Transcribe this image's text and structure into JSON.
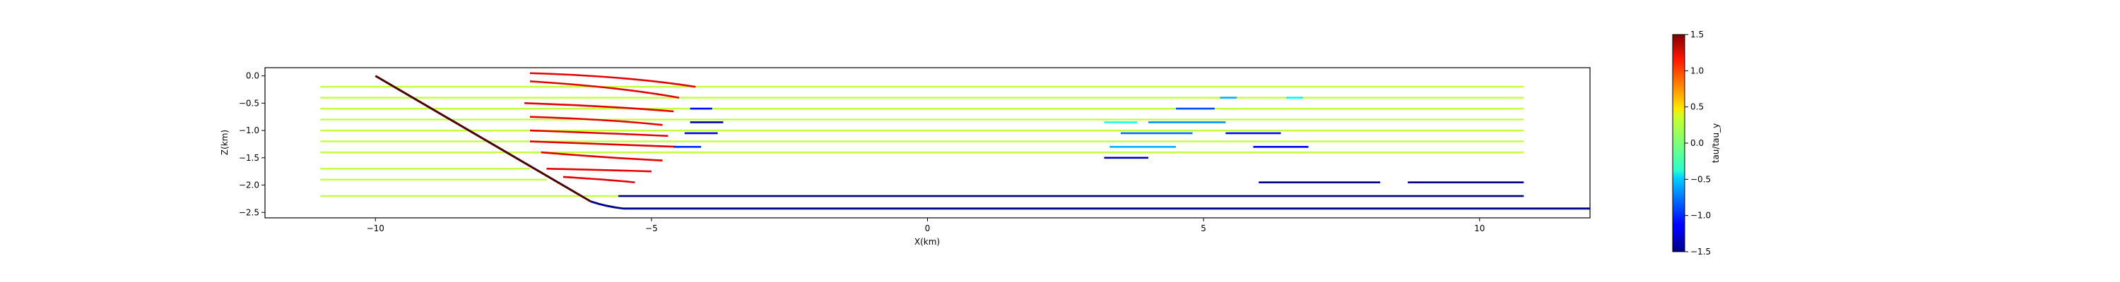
{
  "chart_data": {
    "type": "line",
    "xlabel": "X(km)",
    "ylabel": "Z(km)",
    "xlim": [
      -12,
      12
    ],
    "ylim": [
      -2.6,
      0.15
    ],
    "xticks": [
      -10,
      -5,
      0,
      5,
      10
    ],
    "xtick_labels": [
      "−10",
      "−5",
      "0",
      "5",
      "10"
    ],
    "yticks": [
      0.0,
      -0.5,
      -1.0,
      -1.5,
      -2.0,
      -2.5
    ],
    "ytick_labels": [
      "0.0",
      "−0.5",
      "−1.0",
      "−1.5",
      "−2.0",
      "−2.5"
    ],
    "grid": false,
    "colorbar": {
      "label": "tau/tau_y",
      "min": -1.5,
      "max": 1.5,
      "ticks": [
        1.5,
        1.0,
        0.5,
        0.0,
        -0.5,
        -1.0,
        -1.5
      ],
      "tick_labels": [
        "1.5",
        "1.0",
        "0.5",
        "0.0",
        "−0.5",
        "−1.0",
        "−1.5"
      ],
      "colormap": "jet"
    },
    "fault": {
      "color": "#4a0000",
      "x": [
        -10.0,
        -6.1
      ],
      "z": [
        0.0,
        -2.3
      ]
    },
    "bottom_boundary": {
      "color": "#00008b",
      "x": [
        -6.1,
        -5.8,
        -5.5,
        12.0
      ],
      "z": [
        -2.3,
        -2.4,
        -2.43,
        -2.43
      ]
    },
    "layers": [
      {
        "z": -0.2,
        "x_start": -11.0,
        "x_end": 10.8,
        "tau": 0.2
      },
      {
        "z": -0.4,
        "x_start": -11.0,
        "x_end": 10.8,
        "tau": 0.2
      },
      {
        "z": -0.6,
        "x_start": -11.0,
        "x_end": 10.8,
        "tau": 0.2
      },
      {
        "z": -0.8,
        "x_start": -11.0,
        "x_end": 10.8,
        "tau": 0.2
      },
      {
        "z": -1.0,
        "x_start": -11.0,
        "x_end": 10.8,
        "tau": 0.2
      },
      {
        "z": -1.2,
        "x_start": -11.0,
        "x_end": 10.8,
        "tau": 0.2
      },
      {
        "z": -1.4,
        "x_start": -11.0,
        "x_end": 10.8,
        "tau": 0.2
      },
      {
        "z": -1.7,
        "x_start": -11.0,
        "x_end": -7.2,
        "tau": 0.2
      },
      {
        "z": -1.9,
        "x_start": -11.0,
        "x_end": -6.9,
        "tau": 0.2
      },
      {
        "z": -2.2,
        "x_start": -11.0,
        "x_end": 10.8,
        "tau": 0.2
      }
    ],
    "hanging_wall_layers": [
      {
        "x": [
          -7.2,
          -5.5,
          -4.2
        ],
        "z": [
          0.05,
          0.0,
          -0.2
        ],
        "tau": 1.2
      },
      {
        "x": [
          -7.2,
          -5.6,
          -4.5
        ],
        "z": [
          -0.1,
          -0.2,
          -0.4
        ],
        "tau": 1.2
      },
      {
        "x": [
          -7.3,
          -5.8,
          -4.6
        ],
        "z": [
          -0.5,
          -0.55,
          -0.65
        ],
        "tau": 1.2
      },
      {
        "x": [
          -7.2,
          -5.7,
          -4.8
        ],
        "z": [
          -0.75,
          -0.8,
          -0.9
        ],
        "tau": 1.2
      },
      {
        "x": [
          -7.2,
          -5.8,
          -4.7
        ],
        "z": [
          -1.0,
          -1.05,
          -1.1
        ],
        "tau": 1.2
      },
      {
        "x": [
          -7.2,
          -5.9,
          -4.5
        ],
        "z": [
          -1.2,
          -1.25,
          -1.3
        ],
        "tau": 1.2
      },
      {
        "x": [
          -7.0,
          -5.8,
          -4.8
        ],
        "z": [
          -1.4,
          -1.5,
          -1.55
        ],
        "tau": 1.2
      },
      {
        "x": [
          -6.9,
          -5.9,
          -5.0
        ],
        "z": [
          -1.7,
          -1.72,
          -1.75
        ],
        "tau": 1.2
      },
      {
        "x": [
          -6.6,
          -5.8,
          -5.3
        ],
        "z": [
          -1.85,
          -1.9,
          -1.95
        ],
        "tau": 1.2
      }
    ],
    "stress_patches": [
      {
        "z": -0.6,
        "x": [
          -4.3,
          -3.9
        ],
        "tau": -1.1
      },
      {
        "z": -0.85,
        "x": [
          -4.3,
          -3.7
        ],
        "tau": -1.4
      },
      {
        "z": -1.05,
        "x": [
          -4.4,
          -3.8
        ],
        "tau": -1.2
      },
      {
        "z": -1.3,
        "x": [
          -4.6,
          -4.1
        ],
        "tau": -1.0
      },
      {
        "z": -0.4,
        "x": [
          5.3,
          5.6
        ],
        "tau": -0.6
      },
      {
        "z": -0.4,
        "x": [
          6.5,
          6.8
        ],
        "tau": -0.4
      },
      {
        "z": -0.6,
        "x": [
          4.5,
          5.2
        ],
        "tau": -0.9
      },
      {
        "z": -0.85,
        "x": [
          3.2,
          3.8
        ],
        "tau": -0.3
      },
      {
        "z": -0.85,
        "x": [
          4.0,
          5.4
        ],
        "tau": -0.7
      },
      {
        "z": -1.05,
        "x": [
          3.5,
          4.8
        ],
        "tau": -0.8
      },
      {
        "z": -1.05,
        "x": [
          5.4,
          6.4
        ],
        "tau": -1.1
      },
      {
        "z": -1.3,
        "x": [
          3.3,
          4.5
        ],
        "tau": -0.6
      },
      {
        "z": -1.3,
        "x": [
          5.9,
          6.9
        ],
        "tau": -1.2
      },
      {
        "z": -1.5,
        "x": [
          3.2,
          4.0
        ],
        "tau": -1.3
      },
      {
        "z": -1.95,
        "x": [
          6.0,
          8.2
        ],
        "tau": -1.5
      },
      {
        "z": -1.95,
        "x": [
          8.7,
          10.8
        ],
        "tau": -1.5
      },
      {
        "z": -2.2,
        "x": [
          -5.6,
          10.8
        ],
        "tau": -1.5
      }
    ]
  }
}
